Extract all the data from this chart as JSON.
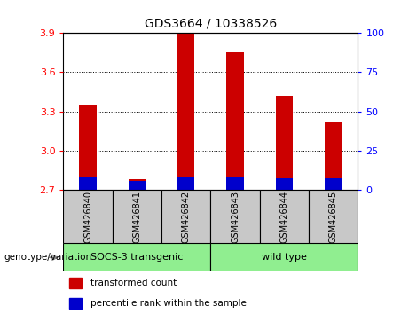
{
  "title": "GDS3664 / 10338526",
  "samples": [
    "GSM426840",
    "GSM426841",
    "GSM426842",
    "GSM426843",
    "GSM426844",
    "GSM426845"
  ],
  "transformed_counts": [
    3.35,
    2.78,
    3.9,
    3.75,
    3.42,
    3.22
  ],
  "percentile_ranks_abs": [
    0.1,
    0.07,
    0.1,
    0.1,
    0.09,
    0.09
  ],
  "y_min": 2.7,
  "y_max": 3.9,
  "y_ticks_left": [
    2.7,
    3.0,
    3.3,
    3.6,
    3.9
  ],
  "y_ticks_right": [
    0,
    25,
    50,
    75,
    100
  ],
  "bar_color": "#CC0000",
  "percentile_color": "#0000CC",
  "label_box_color": "#C8C8C8",
  "group1_label": "SOCS-3 transgenic",
  "group2_label": "wild type",
  "group_color": "#90EE90",
  "legend_red_label": "transformed count",
  "legend_blue_label": "percentile rank within the sample",
  "genotype_label": "genotype/variation",
  "bar_width": 0.35
}
